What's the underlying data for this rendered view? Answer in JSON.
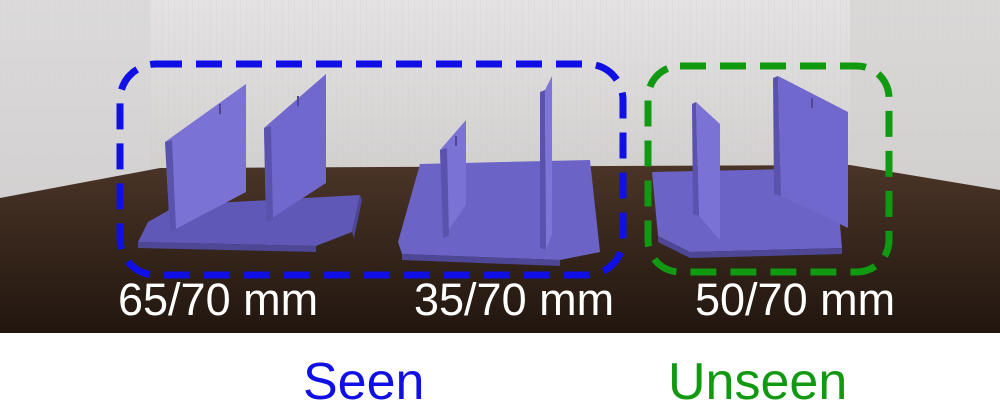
{
  "labels": {
    "left_object": "65/70 mm",
    "middle_object": "35/70 mm",
    "right_object": "50/70 mm",
    "group_seen": "Seen",
    "group_unseen": "Unseen"
  },
  "colors": {
    "seen": "#1010e6",
    "unseen": "#129912",
    "object": "#6e66c9",
    "table": "#3d2a1f",
    "wall": "#dedcdc"
  }
}
